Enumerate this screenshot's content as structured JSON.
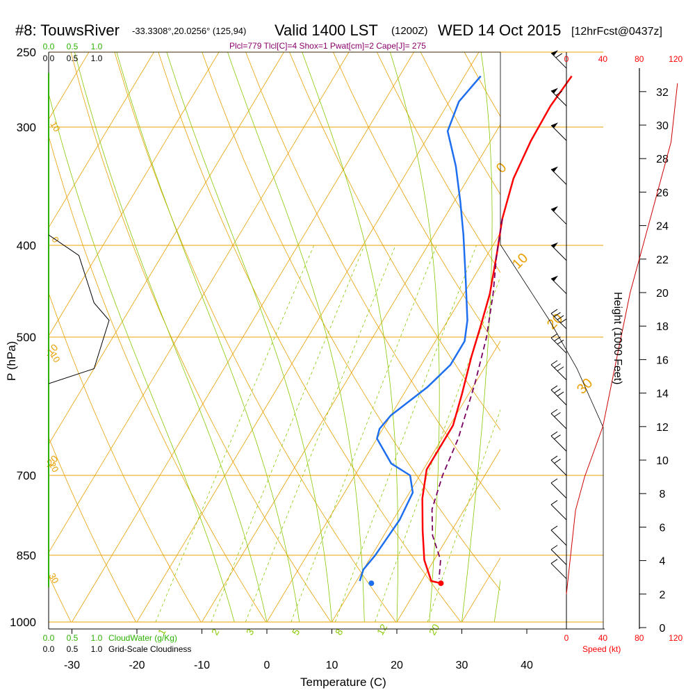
{
  "header": {
    "title_station": "#8: TouwsRiver",
    "title_coords": "-33.3308°,20.0256° (125,94)",
    "title_valid": "Valid 1400 LST",
    "title_z": "(1200Z)",
    "title_date": "WED 14 Oct 2015",
    "title_fcst": "[12hrFcst@0437z]",
    "subtitle": "Plcl=779 Tlcl[C]=4 Shox=1 Pwat[cm]=2 Cape[J]= 275"
  },
  "colors": {
    "isobar": "#e8a000",
    "isotherm": "#e8a000",
    "dry_adiabat": "#e8a000",
    "moist_adiabat": "#88c800",
    "mixing_ratio": "#88c800",
    "temperature": "#ff0000",
    "dewpoint": "#1e6ef0",
    "parcel": "#7a0060",
    "cloud_water": "#2bb200",
    "wind": "#000000",
    "speed_axis": "#ff0000"
  },
  "chart_data": {
    "type": "line",
    "title": "Skew-T sounding",
    "xlabel": "Temperature (C)",
    "ylabel": "P (hPa)",
    "x_ticks": [
      "-30",
      "-20",
      "-10",
      "0",
      "10",
      "20",
      "30",
      "40"
    ],
    "pressure_ticks": [
      "250",
      "300",
      "400",
      "500",
      "700",
      "850",
      "1000"
    ],
    "height_axis_label": "Height (1000 Feet)",
    "height_ticks": [
      "0",
      "2",
      "4",
      "6",
      "8",
      "10",
      "12",
      "14",
      "16",
      "18",
      "20",
      "22",
      "24",
      "26",
      "28",
      "30",
      "32"
    ],
    "speed_ticks": [
      "0",
      "40",
      "80",
      "120"
    ],
    "speed_label": "Speed (kt)",
    "cloudwater_ticks": [
      "0.0",
      "0.5",
      "1.0"
    ],
    "cloudwater_label": "CloudWater (g/Kg)",
    "cloudiness_ticks": [
      "0.0",
      "0.5",
      "1.0"
    ],
    "cloudiness_label": "Grid-Scale Cloudiness",
    "mixing_ratio_labels": [
      "1",
      "2",
      "3",
      "5",
      "8",
      "12",
      "20"
    ],
    "dry_adiabat_labels": [
      "-20",
      "-10",
      "0",
      "10",
      "20",
      "30"
    ],
    "isotherm_labels": [
      "10",
      "0",
      "-10",
      "-20",
      "-30"
    ],
    "series": [
      {
        "name": "Temperature",
        "points": [
          [
            -3.5,
            265
          ],
          [
            -4,
            285
          ],
          [
            -3.8,
            310
          ],
          [
            -3,
            340
          ],
          [
            -1,
            375
          ],
          [
            1.5,
            410
          ],
          [
            4,
            450
          ],
          [
            5.5,
            485
          ],
          [
            7,
            525
          ],
          [
            9,
            575
          ],
          [
            10.5,
            620
          ],
          [
            10.5,
            690
          ],
          [
            12.5,
            740
          ],
          [
            15.5,
            800
          ],
          [
            18.5,
            860
          ],
          [
            21.5,
            905
          ],
          [
            23.2,
            910
          ]
        ]
      },
      {
        "name": "Dewpoint",
        "points": [
          [
            -17.5,
            265
          ],
          [
            -18.5,
            282
          ],
          [
            -17.5,
            303
          ],
          [
            -13,
            330
          ],
          [
            -9,
            360
          ],
          [
            -5.5,
            390
          ],
          [
            -1,
            435
          ],
          [
            3,
            480
          ],
          [
            4.5,
            505
          ],
          [
            4.5,
            535
          ],
          [
            3,
            565
          ],
          [
            0,
            605
          ],
          [
            -0.5,
            625
          ],
          [
            0,
            640
          ],
          [
            4.5,
            680
          ],
          [
            8.5,
            700
          ],
          [
            10.5,
            730
          ],
          [
            11,
            780
          ],
          [
            10.5,
            850
          ],
          [
            10,
            880
          ],
          [
            10.5,
            905
          ]
        ]
      },
      {
        "name": "Parcel",
        "points": [
          [
            -1,
            375
          ],
          [
            1.5,
            410
          ],
          [
            4.5,
            450
          ],
          [
            7.5,
            500
          ],
          [
            10,
            560
          ],
          [
            12.5,
            640
          ],
          [
            13.5,
            700
          ],
          [
            15,
            760
          ],
          [
            17.5,
            810
          ],
          [
            21,
            860
          ],
          [
            22.5,
            900
          ]
        ]
      }
    ],
    "surface_temp_marker": 23.2,
    "surface_dewpoint_marker": 12.5,
    "surface_pressure": 910,
    "cloudiness_profile": [
      [
        0.0,
        390
      ],
      [
        0.3,
        410
      ],
      [
        0.45,
        460
      ],
      [
        0.6,
        480
      ],
      [
        0.45,
        540
      ],
      [
        0.0,
        560
      ]
    ],
    "height_profile_ft": [
      [
        0,
        200
      ],
      [
        3,
        240
      ],
      [
        6,
        280
      ],
      [
        10,
        300
      ],
      [
        14,
        320
      ],
      [
        20,
        340
      ],
      [
        26,
        360
      ],
      [
        32,
        380
      ]
    ],
    "winds": [
      {
        "p": 260,
        "spd": 60,
        "dir": 300
      },
      {
        "p": 285,
        "spd": 60,
        "dir": 300
      },
      {
        "p": 310,
        "spd": 55,
        "dir": 300
      },
      {
        "p": 345,
        "spd": 55,
        "dir": 300
      },
      {
        "p": 380,
        "spd": 55,
        "dir": 300
      },
      {
        "p": 415,
        "spd": 55,
        "dir": 300
      },
      {
        "p": 450,
        "spd": 50,
        "dir": 300
      },
      {
        "p": 490,
        "spd": 40,
        "dir": 300
      },
      {
        "p": 520,
        "spd": 35,
        "dir": 300
      },
      {
        "p": 555,
        "spd": 35,
        "dir": 300
      },
      {
        "p": 590,
        "spd": 30,
        "dir": 300
      },
      {
        "p": 625,
        "spd": 25,
        "dir": 300
      },
      {
        "p": 660,
        "spd": 20,
        "dir": 300
      },
      {
        "p": 700,
        "spd": 20,
        "dir": 300
      },
      {
        "p": 740,
        "spd": 15,
        "dir": 300
      },
      {
        "p": 780,
        "spd": 10,
        "dir": 300
      },
      {
        "p": 830,
        "spd": 10,
        "dir": 270
      },
      {
        "p": 870,
        "spd": 10,
        "dir": 240
      },
      {
        "p": 900,
        "spd": 10,
        "dir": 200
      }
    ]
  }
}
